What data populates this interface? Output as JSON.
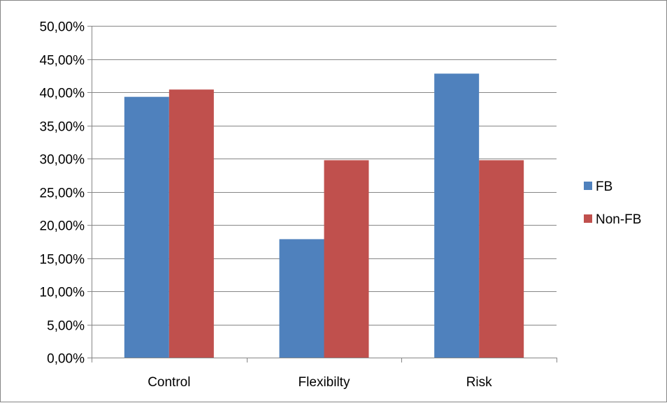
{
  "chart_data": {
    "type": "bar",
    "title": "",
    "xlabel": "",
    "ylabel": "",
    "categories": [
      "Control",
      "Flexibilty",
      "Risk"
    ],
    "series": [
      {
        "name": "FB",
        "color": "#4f81bd",
        "values": [
          39.3,
          17.85,
          42.8
        ]
      },
      {
        "name": "Non-FB",
        "color": "#c0504d",
        "values": [
          40.4,
          29.75,
          29.75
        ]
      }
    ],
    "ylim": [
      0,
      50
    ],
    "yticks": [
      0,
      5,
      10,
      15,
      20,
      25,
      30,
      35,
      40,
      45,
      50
    ],
    "ytick_labels": [
      "0,00%",
      "5,00%",
      "10,00%",
      "15,00%",
      "20,00%",
      "25,00%",
      "30,00%",
      "35,00%",
      "40,00%",
      "45,00%",
      "50,00%"
    ],
    "grid": true,
    "legend_position": "right"
  }
}
